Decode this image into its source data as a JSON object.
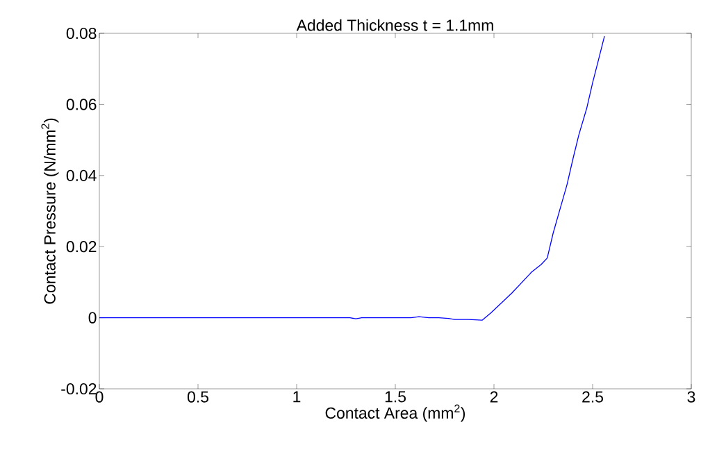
{
  "chart_data": {
    "type": "line",
    "title": "Added Thickness t = 1.1mm",
    "xlabel": "Contact Area (mm$^{2}$)",
    "ylabel": "Contact Pressure (N/mm$^{2}$)",
    "x": [
      0,
      1.27,
      1.3,
      1.33,
      1.58,
      1.62,
      1.67,
      1.72,
      1.77,
      1.8,
      1.87,
      1.94,
      1.985,
      2.09,
      2.19,
      2.24,
      2.27,
      2.3,
      2.34,
      2.37,
      2.4,
      2.43,
      2.47,
      2.5,
      2.53,
      2.56
    ],
    "series": [
      {
        "color": "#0000ff",
        "values": [
          0,
          0,
          -0.0003,
          0,
          0,
          0.0003,
          0,
          0,
          -0.0002,
          -0.0005,
          -0.0005,
          -0.0007,
          0.0014,
          0.0069,
          0.0128,
          0.015,
          0.0168,
          0.0238,
          0.0316,
          0.0374,
          0.0446,
          0.0514,
          0.0589,
          0.0661,
          0.0726,
          0.0792
        ]
      }
    ],
    "xlim": [
      0,
      3
    ],
    "ylim": [
      -0.02,
      0.08
    ],
    "xticks": [
      0,
      0.5,
      1,
      1.5,
      2,
      2.5,
      3
    ],
    "yticks": [
      -0.02,
      0,
      0.02,
      0.04,
      0.06,
      0.08
    ],
    "grid": false,
    "marker": "none",
    "line_style": "solid"
  }
}
